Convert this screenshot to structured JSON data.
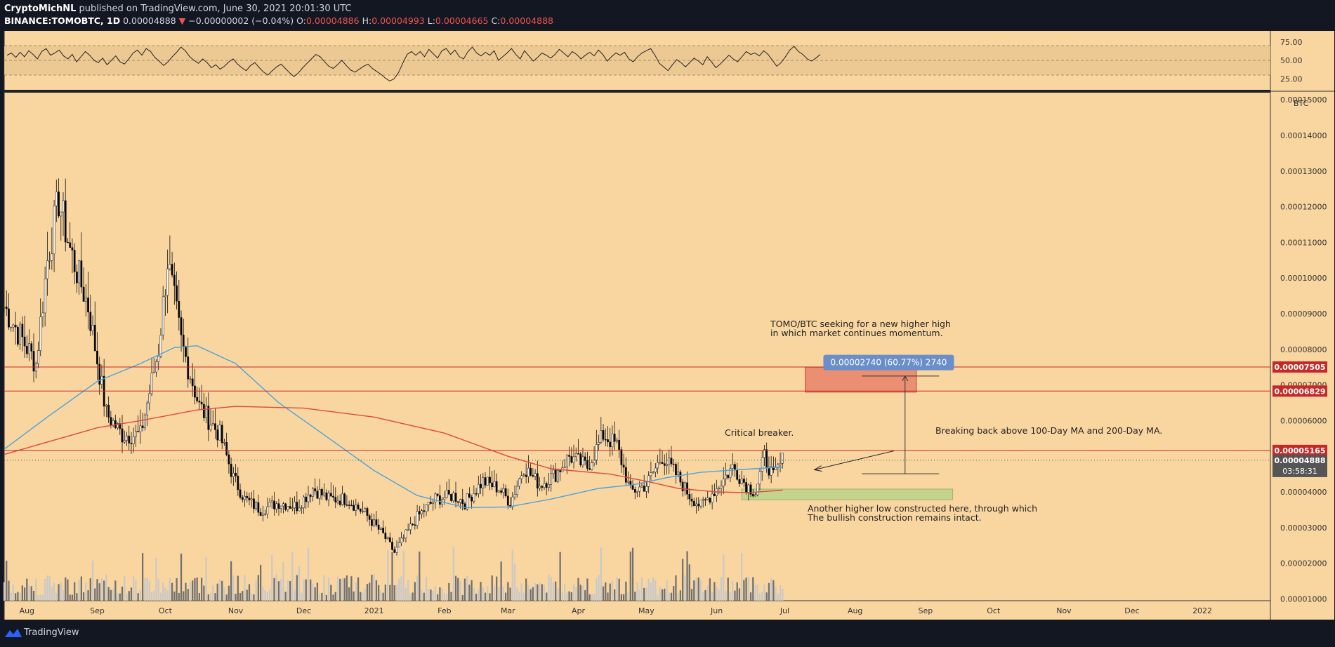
{
  "header": {
    "author": "CryptoMichNL",
    "published": "published on TradingView.com, June 30, 2021 20:01:30 UTC",
    "symbol": "BINANCE:TOMOBTC, 1D",
    "last": "0.00004888",
    "change_arrow": "▼",
    "change": "−0.00000002 (−0.04%)",
    "o_label": "O:",
    "o": "0.00004886",
    "h_label": "H:",
    "h": "0.00004993",
    "l_label": "L:",
    "l": "0.00004665",
    "c_label": "C:",
    "c": "0.00004888"
  },
  "footer": {
    "brand": "TradingView"
  },
  "colors": {
    "background": "#f9d6a0",
    "up": "#ffffff",
    "down": "#000000",
    "ma100": "#4aa3df",
    "ma200": "#e0483c",
    "level_line": "#c62828",
    "target_box": "#e8836a",
    "support_box": "#b7d48a",
    "measure_label": "#6a8ec9"
  },
  "chart_data": {
    "type": "candlestick",
    "symbol": "TOMOBTC",
    "exchange": "BINANCE",
    "interval": "1D",
    "price_unit": "BTC",
    "price_ticks": [
      "0.00015000",
      "0.00014000",
      "0.00013000",
      "0.00012000",
      "0.00011000",
      "0.00010000",
      "0.00009000",
      "0.00008000",
      "0.00007000",
      "0.00006000",
      "0.00005000",
      "0.00004000",
      "0.00003000",
      "0.00002000",
      "0.00001000"
    ],
    "x_ticks": [
      "Aug",
      "Sep",
      "Oct",
      "Nov",
      "Dec",
      "2021",
      "Feb",
      "Mar",
      "Apr",
      "May",
      "Jun",
      "Jul",
      "Aug",
      "Sep",
      "Oct",
      "Nov",
      "Dec",
      "2022"
    ],
    "x_range": [
      "2020-07-22",
      "2022-01-31"
    ],
    "y_range": [
      9.5e-06,
      0.000152
    ],
    "rsi": {
      "ticks": [
        "75.00",
        "50.00",
        "25.00"
      ],
      "overbought": 70,
      "oversold": 30,
      "values": [
        57,
        60,
        54,
        61,
        55,
        63,
        58,
        52,
        62,
        66,
        57,
        60,
        64,
        56,
        52,
        58,
        48,
        55,
        62,
        57,
        50,
        47,
        53,
        44,
        50,
        56,
        48,
        45,
        52,
        60,
        64,
        57,
        66,
        62,
        54,
        49,
        43,
        48,
        55,
        61,
        68,
        63,
        55,
        50,
        46,
        52,
        47,
        40,
        44,
        38,
        42,
        48,
        52,
        45,
        40,
        36,
        43,
        47,
        40,
        34,
        30,
        36,
        41,
        45,
        39,
        33,
        28,
        33,
        40,
        46,
        52,
        58,
        55,
        48,
        42,
        39,
        44,
        50,
        43,
        37,
        34,
        38,
        42,
        45,
        39,
        35,
        31,
        26,
        22,
        25,
        33,
        46,
        58,
        62,
        57,
        62,
        55,
        65,
        59,
        53,
        63,
        66,
        58,
        64,
        55,
        52,
        62,
        68,
        60,
        56,
        61,
        57,
        63,
        50,
        55,
        60,
        66,
        58,
        52,
        63,
        56,
        49,
        54,
        60,
        57,
        53,
        58,
        65,
        60,
        55,
        62,
        58,
        52,
        57,
        61,
        56,
        64,
        58,
        49,
        55,
        60,
        57,
        61,
        52,
        48,
        55,
        60,
        63,
        66,
        57,
        46,
        41,
        36,
        44,
        51,
        47,
        41,
        47,
        53,
        49,
        44,
        55,
        48,
        40,
        45,
        51,
        57,
        52,
        48,
        55,
        62,
        58,
        60,
        56,
        63,
        58,
        50,
        42,
        47,
        55,
        64,
        69,
        62,
        58,
        52,
        49,
        53,
        58
      ]
    },
    "ma100_points": [
      [
        "2020-07-22",
        5.2e-05
      ],
      [
        "2020-08-10",
        6.1e-05
      ],
      [
        "2020-09-01",
        7.1e-05
      ],
      [
        "2020-09-20",
        7.6e-05
      ],
      [
        "2020-10-05",
        8.05e-05
      ],
      [
        "2020-10-15",
        8.1e-05
      ],
      [
        "2020-11-01",
        7.6e-05
      ],
      [
        "2020-11-20",
        6.5e-05
      ],
      [
        "2020-12-10",
        5.6e-05
      ],
      [
        "2021-01-01",
        4.6e-05
      ],
      [
        "2021-01-20",
        3.9e-05
      ],
      [
        "2021-02-10",
        3.56e-05
      ],
      [
        "2021-03-01",
        3.58e-05
      ],
      [
        "2021-03-20",
        3.8e-05
      ],
      [
        "2021-04-10",
        4.1e-05
      ],
      [
        "2021-04-25",
        4.2e-05
      ],
      [
        "2021-05-10",
        4.4e-05
      ],
      [
        "2021-05-25",
        4.55e-05
      ],
      [
        "2021-06-10",
        4.62e-05
      ],
      [
        "2021-06-30",
        4.7e-05
      ]
    ],
    "ma200_points": [
      [
        "2020-07-22",
        5.05e-05
      ],
      [
        "2020-08-10",
        5.4e-05
      ],
      [
        "2020-09-01",
        5.8e-05
      ],
      [
        "2020-09-20",
        6e-05
      ],
      [
        "2020-10-15",
        6.3e-05
      ],
      [
        "2020-11-01",
        6.4e-05
      ],
      [
        "2020-12-01",
        6.35e-05
      ],
      [
        "2021-01-01",
        6.1e-05
      ],
      [
        "2021-02-01",
        5.65e-05
      ],
      [
        "2021-03-01",
        5e-05
      ],
      [
        "2021-03-20",
        4.65e-05
      ],
      [
        "2021-04-15",
        4.5e-05
      ],
      [
        "2021-05-01",
        4.3e-05
      ],
      [
        "2021-05-15",
        4.1e-05
      ],
      [
        "2021-06-01",
        4e-05
      ],
      [
        "2021-06-15",
        3.98e-05
      ],
      [
        "2021-06-30",
        4.05e-05
      ]
    ],
    "anchors": [
      [
        "2020-07-22",
        9.2e-05
      ],
      [
        "2020-07-28",
        8.5e-05
      ],
      [
        "2020-08-05",
        7.6e-05
      ],
      [
        "2020-08-10",
        0.000105
      ],
      [
        "2020-08-15",
        0.000122
      ],
      [
        "2020-08-20",
        0.000108
      ],
      [
        "2020-08-28",
        9.2e-05
      ],
      [
        "2020-09-05",
        6.2e-05
      ],
      [
        "2020-09-12",
        5.6e-05
      ],
      [
        "2020-09-20",
        5.6e-05
      ],
      [
        "2020-09-28",
        8e-05
      ],
      [
        "2020-10-02",
        0.000105
      ],
      [
        "2020-10-08",
        8.2e-05
      ],
      [
        "2020-10-16",
        6.4e-05
      ],
      [
        "2020-10-25",
        5.6e-05
      ],
      [
        "2020-10-31",
        4.4e-05
      ],
      [
        "2020-11-05",
        3.8e-05
      ],
      [
        "2020-11-12",
        3.5e-05
      ],
      [
        "2020-11-20",
        3.7e-05
      ],
      [
        "2020-11-28",
        3.6e-05
      ],
      [
        "2020-12-05",
        4.1e-05
      ],
      [
        "2020-12-12",
        3.8e-05
      ],
      [
        "2020-12-20",
        3.8e-05
      ],
      [
        "2020-12-28",
        3.4e-05
      ],
      [
        "2021-01-05",
        2.8e-05
      ],
      [
        "2021-01-10",
        2.3e-05
      ],
      [
        "2021-01-14",
        2.7e-05
      ],
      [
        "2021-01-20",
        3.3e-05
      ],
      [
        "2021-01-28",
        3.8e-05
      ],
      [
        "2021-02-05",
        3.9e-05
      ],
      [
        "2021-02-10",
        3.7e-05
      ],
      [
        "2021-02-18",
        4.3e-05
      ],
      [
        "2021-02-25",
        4.1e-05
      ],
      [
        "2021-03-02",
        3.7e-05
      ],
      [
        "2021-03-08",
        4.7e-05
      ],
      [
        "2021-03-15",
        4.2e-05
      ],
      [
        "2021-03-22",
        4.5e-05
      ],
      [
        "2021-03-28",
        5e-05
      ],
      [
        "2021-04-05",
        4.7e-05
      ],
      [
        "2021-04-12",
        5.6e-05
      ],
      [
        "2021-04-18",
        5.3e-05
      ],
      [
        "2021-04-24",
        4e-05
      ],
      [
        "2021-05-01",
        4.2e-05
      ],
      [
        "2021-05-08",
        5e-05
      ],
      [
        "2021-05-14",
        4.5e-05
      ],
      [
        "2021-05-20",
        3.9e-05
      ],
      [
        "2021-05-25",
        3.6e-05
      ],
      [
        "2021-06-01",
        4.1e-05
      ],
      [
        "2021-06-08",
        4.7e-05
      ],
      [
        "2021-06-14",
        4.2e-05
      ],
      [
        "2021-06-18",
        4e-05
      ],
      [
        "2021-06-22",
        5e-05
      ],
      [
        "2021-06-26",
        4.4e-05
      ],
      [
        "2021-06-30",
        4.89e-05
      ]
    ],
    "levels": [
      {
        "label": "0.00007505",
        "price": 7.505e-05
      },
      {
        "label": "0.00006829",
        "price": 6.829e-05
      },
      {
        "label": "0.00005165",
        "price": 5.165e-05
      }
    ],
    "current": {
      "price_label": "0.00004888",
      "countdown": "03:58:31",
      "price": 4.888e-05
    },
    "annotations": {
      "target_text": [
        "TOMO/BTC seeking for a new higher high",
        "in which market continues momentum."
      ],
      "critical": "Critical breaker.",
      "breaking": "Breaking back above 100-Day MA and 200-Day MA.",
      "higher_low": [
        "Another higher low constructed here, through which",
        "The bullish construction remains intact."
      ],
      "measure": "0.00002740 (60.77%) 2740"
    },
    "target_box": {
      "from": "2021-07-10",
      "to": "2021-08-28",
      "top": 7.5e-05,
      "bottom": 6.8e-05
    },
    "support_box": {
      "from": "2021-06-12",
      "to": "2021-09-13",
      "top": 4.08e-05,
      "bottom": 3.78e-05
    },
    "measure": {
      "date": "2021-08-23",
      "from": 4.51e-05,
      "to": 7.25e-05,
      "from_date": "2021-08-04",
      "to_date": "2021-09-07"
    },
    "arrow": {
      "from_date": "2021-08-18",
      "from_price": 5.15e-05,
      "to_date": "2021-07-14",
      "to_price": 4.62e-05
    }
  }
}
